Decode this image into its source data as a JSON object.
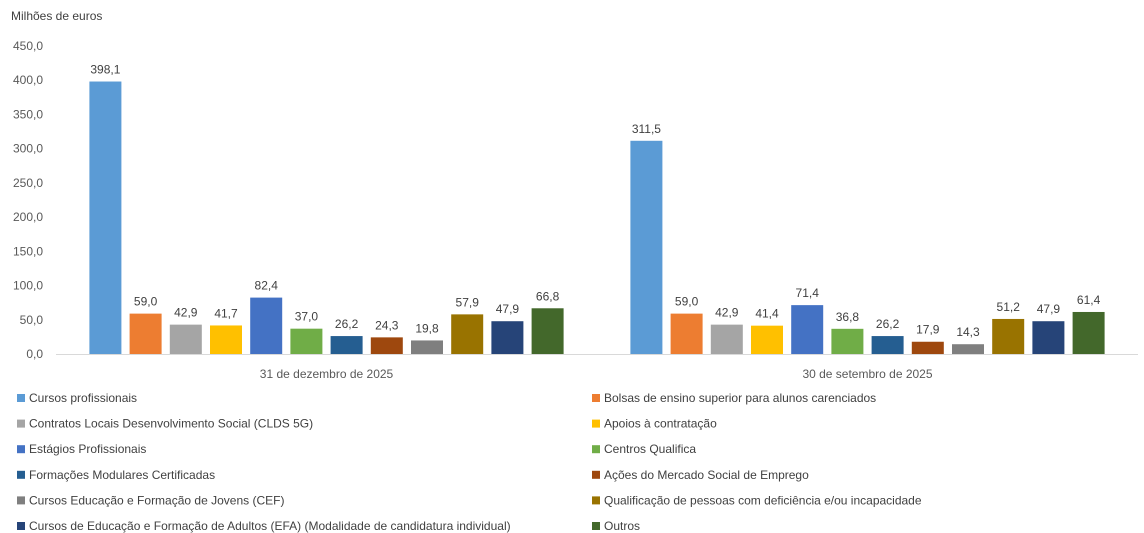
{
  "chart_data": {
    "type": "bar",
    "ylabel": "Milhões de euros",
    "ylim": [
      0,
      450
    ],
    "yticks": [
      "0,0",
      "50,0",
      "100,0",
      "150,0",
      "200,0",
      "250,0",
      "300,0",
      "350,0",
      "400,0",
      "450,0"
    ],
    "categories": [
      "31 de dezembro de 2025",
      "30 de setembro de 2025"
    ],
    "series": [
      {
        "name": "Cursos profissionais",
        "color": "#5B9BD5",
        "values": [
          398.1,
          311.5
        ],
        "labels": [
          "398,1",
          "311,5"
        ]
      },
      {
        "name": "Bolsas de ensino superior para alunos carenciados",
        "color": "#ED7D31",
        "values": [
          59.0,
          59.0
        ],
        "labels": [
          "59,0",
          "59,0"
        ]
      },
      {
        "name": "Contratos Locais Desenvolvimento Social (CLDS 5G)",
        "color": "#A5A5A5",
        "values": [
          42.9,
          42.9
        ],
        "labels": [
          "42,9",
          "42,9"
        ]
      },
      {
        "name": "Apoios à contratação",
        "color": "#FFC000",
        "values": [
          41.7,
          41.4
        ],
        "labels": [
          "41,7",
          "41,4"
        ]
      },
      {
        "name": "Estágios Profissionais",
        "color": "#4472C4",
        "values": [
          82.4,
          71.4
        ],
        "labels": [
          "82,4",
          "71,4"
        ]
      },
      {
        "name": "Centros Qualifica",
        "color": "#70AD47",
        "values": [
          37.0,
          36.8
        ],
        "labels": [
          "37,0",
          "36,8"
        ]
      },
      {
        "name": "Formações Modulares Certificadas",
        "color": "#255E91",
        "values": [
          26.2,
          26.2
        ],
        "labels": [
          "26,2",
          "26,2"
        ]
      },
      {
        "name": "Ações do Mercado Social de Emprego",
        "color": "#9E480E",
        "values": [
          24.3,
          17.9
        ],
        "labels": [
          "24,3",
          "17,9"
        ]
      },
      {
        "name": "Cursos Educação e Formação de Jovens (CEF)",
        "color": "#7F7F7F",
        "values": [
          19.8,
          14.3
        ],
        "labels": [
          "19,8",
          "14,3"
        ]
      },
      {
        "name": "Qualificação de pessoas com deficiência e/ou incapacidade",
        "color": "#997300",
        "values": [
          57.9,
          51.2
        ],
        "labels": [
          "57,9",
          "51,2"
        ]
      },
      {
        "name": "Cursos de Educação e Formação de Adultos (EFA) (Modalidade de candidatura individual)",
        "color": "#264478",
        "values": [
          47.9,
          47.9
        ],
        "labels": [
          "47,9",
          "47,9"
        ]
      },
      {
        "name": "Outros",
        "color": "#43682B",
        "values": [
          66.8,
          61.4
        ],
        "labels": [
          "66,8",
          "61,4"
        ]
      }
    ],
    "grid": false,
    "legend": "bottom"
  }
}
